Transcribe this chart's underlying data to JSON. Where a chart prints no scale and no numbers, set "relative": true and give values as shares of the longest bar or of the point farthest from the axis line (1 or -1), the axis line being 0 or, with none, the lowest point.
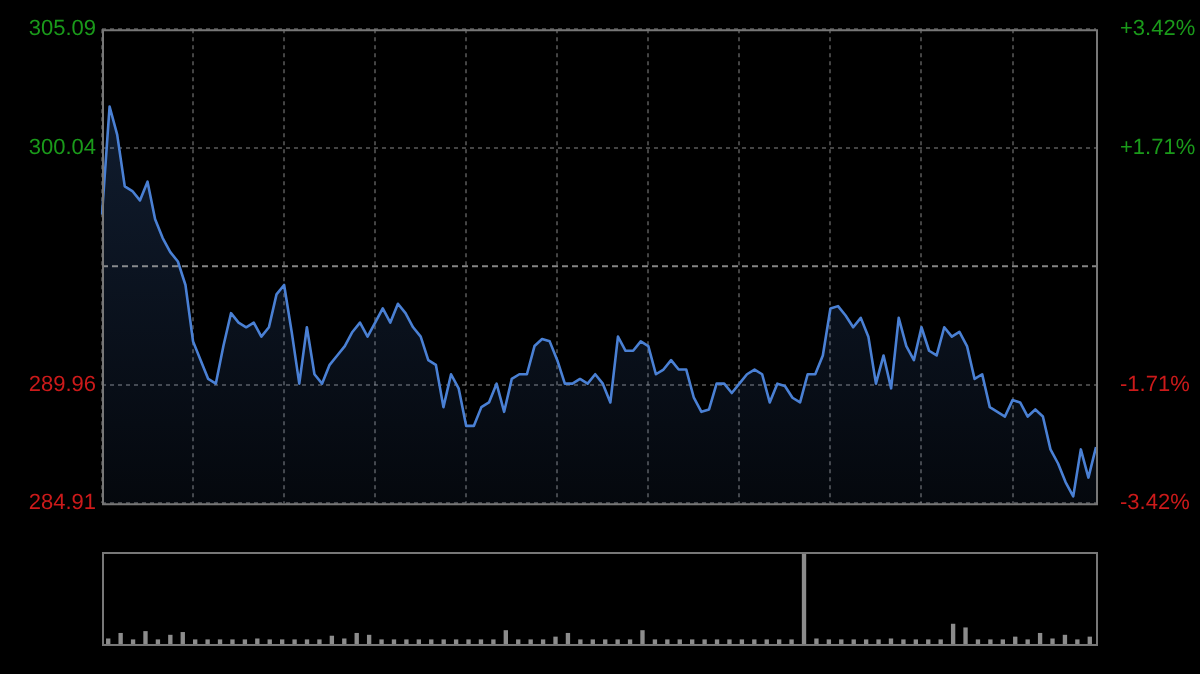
{
  "chart_data": [
    {
      "type": "area",
      "categories": [
        null,
        null,
        null,
        null,
        null,
        null,
        null,
        null,
        null,
        null,
        null,
        null,
        null,
        null,
        null,
        null,
        null,
        null,
        null,
        null,
        null,
        null,
        null,
        null,
        null,
        null,
        null,
        null,
        null,
        null,
        null,
        null,
        null,
        null,
        null,
        null,
        null,
        null,
        null,
        null,
        null,
        null,
        null,
        null,
        null,
        null,
        null,
        null,
        null,
        null,
        null,
        null,
        null,
        null,
        null,
        null,
        null,
        null,
        null,
        null,
        null,
        null,
        null,
        null,
        null,
        null,
        null,
        null,
        null,
        null,
        null,
        null,
        null,
        null,
        null,
        null,
        null,
        null,
        null,
        null,
        null,
        null,
        null,
        null,
        null,
        null,
        null,
        null,
        null,
        null,
        null,
        null,
        null,
        null,
        null,
        null,
        null,
        null,
        null,
        null,
        null,
        null,
        null,
        null,
        null,
        null,
        null,
        null,
        null,
        null,
        null,
        null,
        null,
        null,
        null,
        null,
        null,
        null,
        null,
        null,
        null,
        null,
        null,
        null,
        null,
        null,
        null,
        null,
        null,
        null,
        null,
        null
      ],
      "series": [
        {
          "color": "#4a80d4",
          "values": [
            297.2,
            301.8,
            300.6,
            298.4,
            298.2,
            297.8,
            298.6,
            297.0,
            296.2,
            295.6,
            295.2,
            294.2,
            291.8,
            291.0,
            290.2,
            290.0,
            291.6,
            293.0,
            292.6,
            292.4,
            292.6,
            292.0,
            292.4,
            293.8,
            294.2,
            292.2,
            290.0,
            292.4,
            290.4,
            290.0,
            290.8,
            291.2,
            291.6,
            292.2,
            292.6,
            292.0,
            292.6,
            293.2,
            292.6,
            293.4,
            293.0,
            292.4,
            292.0,
            291.0,
            290.8,
            289.0,
            290.4,
            289.8,
            288.2,
            288.2,
            289.0,
            289.2,
            290.0,
            288.8,
            290.2,
            290.4,
            290.4,
            291.6,
            291.9,
            291.8,
            291.0,
            290.0,
            290.0,
            290.2,
            290.0,
            290.4,
            290.0,
            289.2,
            292.0,
            291.4,
            291.4,
            291.8,
            291.6,
            290.4,
            290.6,
            291.0,
            290.6,
            290.6,
            289.4,
            288.8,
            288.9,
            290.0,
            290.0,
            289.6,
            290.0,
            290.4,
            290.6,
            290.4,
            289.2,
            290.0,
            289.9,
            289.4,
            289.2,
            290.4,
            290.4,
            291.2,
            293.2,
            293.3,
            292.9,
            292.4,
            292.8,
            292.0,
            290.0,
            291.2,
            289.8,
            292.8,
            291.6,
            291.0,
            292.4,
            291.4,
            291.2,
            292.4,
            292.0,
            292.2,
            291.6,
            290.2,
            290.4,
            289.0,
            288.8,
            288.6,
            289.3,
            289.2,
            288.6,
            288.9,
            288.6,
            287.2,
            286.6,
            285.8,
            285.2,
            287.2,
            286.0,
            287.3
          ]
        }
      ],
      "ylim": [
        284.91,
        305.09
      ],
      "yticks": [
        284.91,
        289.96,
        300.04,
        305.09
      ],
      "y2lim": [
        -3.42,
        3.42
      ],
      "y2ticks": [
        {
          "value": -3.42,
          "label": "-3.42%"
        },
        {
          "value": -1.71,
          "label": "-1.71%"
        },
        {
          "value": 1.71,
          "label": "+1.71%"
        },
        {
          "value": 3.42,
          "label": "+3.42%"
        }
      ],
      "ref_lines": [
        {
          "axis": "y",
          "value": 295.0
        }
      ],
      "grid": true,
      "legend": false
    },
    {
      "type": "bar",
      "relative": true,
      "categories": [
        null,
        null,
        null,
        null,
        null,
        null,
        null,
        null,
        null,
        null,
        null,
        null,
        null,
        null,
        null,
        null,
        null,
        null,
        null,
        null,
        null,
        null,
        null,
        null,
        null,
        null,
        null,
        null,
        null,
        null,
        null,
        null,
        null,
        null,
        null,
        null,
        null,
        null,
        null,
        null,
        null,
        null,
        null,
        null,
        null,
        null,
        null,
        null,
        null,
        null,
        null,
        null,
        null,
        null,
        null,
        null,
        null,
        null,
        null,
        null,
        null,
        null,
        null,
        null,
        null,
        null,
        null,
        null,
        null,
        null,
        null,
        null,
        null,
        null,
        null,
        null,
        null,
        null,
        null,
        null
      ],
      "series": [
        {
          "color": "#8c8c8c",
          "values": [
            0.06,
            0.12,
            0.05,
            0.14,
            0.05,
            0.1,
            0.13,
            0.05,
            0.05,
            0.05,
            0.05,
            0.05,
            0.06,
            0.05,
            0.05,
            0.05,
            0.05,
            0.05,
            0.09,
            0.06,
            0.12,
            0.1,
            0.05,
            0.05,
            0.05,
            0.05,
            0.05,
            0.05,
            0.05,
            0.05,
            0.05,
            0.05,
            0.15,
            0.05,
            0.05,
            0.05,
            0.08,
            0.12,
            0.05,
            0.05,
            0.05,
            0.05,
            0.05,
            0.15,
            0.05,
            0.05,
            0.05,
            0.05,
            0.05,
            0.05,
            0.05,
            0.05,
            0.05,
            0.05,
            0.05,
            0.05,
            1.0,
            0.06,
            0.05,
            0.05,
            0.05,
            0.05,
            0.05,
            0.06,
            0.05,
            0.05,
            0.05,
            0.05,
            0.22,
            0.18,
            0.05,
            0.05,
            0.05,
            0.08,
            0.05,
            0.12,
            0.06,
            0.1,
            0.05,
            0.08
          ]
        }
      ],
      "grid": false,
      "legend": false
    }
  ]
}
